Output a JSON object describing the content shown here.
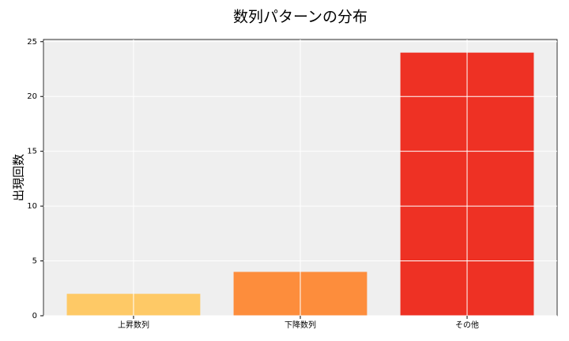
{
  "chart_data": {
    "type": "bar",
    "title": "数列パターンの分布",
    "y_label": "出現回数",
    "categories": [
      "上昇数列",
      "下降数列",
      "その他"
    ],
    "values": [
      2,
      4,
      24
    ],
    "colors": [
      "#fec966",
      "#fd8d3c",
      "#ee3124"
    ],
    "ylim": [
      0,
      25.2
    ],
    "yticks": [
      0,
      5,
      10,
      15,
      20,
      25
    ],
    "grid": true
  }
}
